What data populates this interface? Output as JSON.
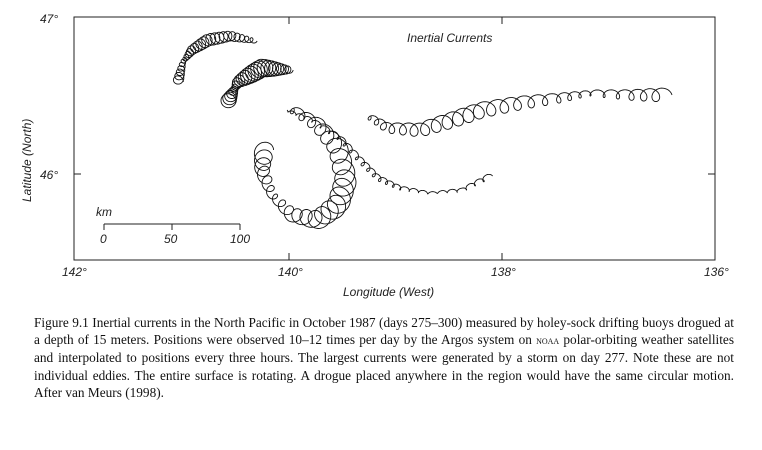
{
  "figure": {
    "inset_title": "Inertial Currents",
    "xlabel": "Longitude (West)",
    "ylabel": "Latitude (North)",
    "x_ticks": [
      "142°",
      "140°",
      "138°",
      "136°"
    ],
    "y_ticks": [
      "47°",
      "46°"
    ],
    "scale_bar": {
      "unit": "km",
      "ticks": [
        "0",
        "50",
        "100"
      ]
    }
  },
  "caption": {
    "part1": "Figure 9.1 Inertial currents in the North Pacific in October 1987 (days 275–300) measured by holey-sock drifting buoys drogued at a depth of 15 meters. Positions were observed 10–12 times per day by the Argos system on ",
    "agency": "noaa",
    "part2": " polar-orbiting weather satellites and interpolated to positions every three hours. The largest currents were generated by a storm on day 277. Note these are not individual eddies. The entire surface is rotating. A drogue placed anywhere in the region would have the same circular motion. After van Meurs (1998)."
  }
}
